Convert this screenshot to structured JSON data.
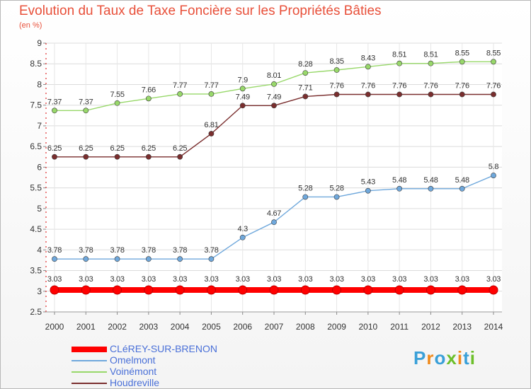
{
  "title": "Evolution du Taux de Taxe Foncière sur les Propriétés Bâties",
  "subtitle": "(en %)",
  "logo": {
    "text": "Proxiti",
    "colors": [
      "#3aa0d8",
      "#f08a1c",
      "#3aa0d8",
      "#6cbf2a",
      "#f08a1c",
      "#3aa0d8",
      "#6cbf2a"
    ]
  },
  "chart_data": {
    "type": "line",
    "x": [
      "2000",
      "2001",
      "2002",
      "2003",
      "2004",
      "2005",
      "2006",
      "2007",
      "2008",
      "2009",
      "2010",
      "2011",
      "2012",
      "2013",
      "2014"
    ],
    "ylim": [
      2.5,
      9
    ],
    "yticks": [
      "2.5",
      "3",
      "3.5",
      "4",
      "4.5",
      "5",
      "5.5",
      "6",
      "6.5",
      "7",
      "7.5",
      "8",
      "8.5",
      "9"
    ],
    "grid": true,
    "legend_position": "bottom",
    "series": [
      {
        "name": "CLéREY-SUR-BRENON",
        "color": "#ff0000",
        "values": [
          3.03,
          3.03,
          3.03,
          3.03,
          3.03,
          3.03,
          3.03,
          3.03,
          3.03,
          3.03,
          3.03,
          3.03,
          3.03,
          3.03,
          3.03
        ],
        "labels": [
          "3.03",
          "3.03",
          "3.03",
          "3.03",
          "3.03",
          "3.03",
          "3.03",
          "3.03",
          "3.03",
          "3.03",
          "3.03",
          "3.03",
          "3.03",
          "3.03",
          "3.03"
        ]
      },
      {
        "name": "Omelmont",
        "color": "#6fa8dc",
        "values": [
          3.78,
          3.78,
          3.78,
          3.78,
          3.78,
          3.78,
          4.3,
          4.67,
          5.28,
          5.28,
          5.43,
          5.48,
          5.48,
          5.48,
          5.8
        ],
        "labels": [
          "3.78",
          "3.78",
          "3.78",
          "3.78",
          "3.78",
          "3.78",
          "4.3",
          "4.67",
          "5.28",
          "5.28",
          "5.43",
          "5.48",
          "5.48",
          "5.48",
          "5.8"
        ]
      },
      {
        "name": "Voinémont",
        "color": "#98d86a",
        "values": [
          7.37,
          7.37,
          7.55,
          7.66,
          7.77,
          7.77,
          7.9,
          8.01,
          8.28,
          8.35,
          8.43,
          8.51,
          8.51,
          8.55,
          8.55
        ],
        "labels": [
          "7.37",
          "7.37",
          "7.55",
          "7.66",
          "7.77",
          "7.77",
          "7.9",
          "8.01",
          "8.28",
          "8.35",
          "8.43",
          "8.51",
          "8.51",
          "8.55",
          "8.55"
        ]
      },
      {
        "name": "Houdreville",
        "color": "#7a2e2e",
        "values": [
          6.25,
          6.25,
          6.25,
          6.25,
          6.25,
          6.81,
          7.49,
          7.49,
          7.71,
          7.76,
          7.76,
          7.76,
          7.76,
          7.76,
          7.76
        ],
        "labels": [
          "6.25",
          "6.25",
          "6.25",
          "6.25",
          "6.25",
          "6.81",
          "7.49",
          "7.49",
          "7.71",
          "7.76",
          "7.76",
          "7.76",
          "7.76",
          "7.76",
          "7.76"
        ]
      }
    ]
  }
}
